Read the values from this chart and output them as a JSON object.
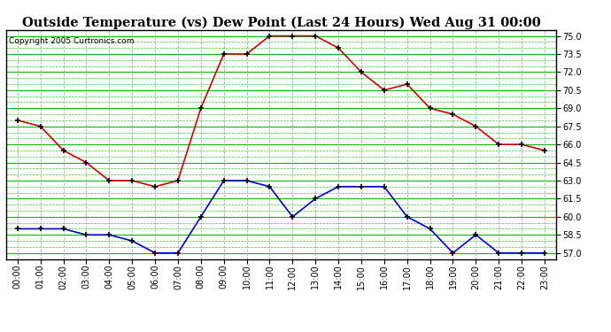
{
  "title": "Outside Temperature (vs) Dew Point (Last 24 Hours) Wed Aug 31 00:00",
  "copyright": "Copyright 2005 Curtronics.com",
  "hours": [
    "00:00",
    "01:00",
    "02:00",
    "03:00",
    "04:00",
    "05:00",
    "06:00",
    "07:00",
    "08:00",
    "09:00",
    "10:00",
    "11:00",
    "12:00",
    "13:00",
    "14:00",
    "15:00",
    "16:00",
    "17:00",
    "18:00",
    "19:00",
    "20:00",
    "21:00",
    "22:00",
    "23:00"
  ],
  "temp": [
    68.0,
    67.5,
    65.5,
    64.5,
    63.0,
    63.0,
    62.5,
    63.0,
    69.0,
    73.5,
    73.5,
    75.0,
    75.0,
    75.0,
    74.0,
    72.0,
    70.5,
    71.0,
    69.0,
    68.5,
    67.5,
    66.0,
    66.0,
    65.5
  ],
  "dew": [
    59.0,
    59.0,
    59.0,
    58.5,
    58.5,
    58.0,
    57.0,
    57.0,
    60.0,
    63.0,
    63.0,
    62.5,
    60.0,
    61.5,
    62.5,
    62.5,
    62.5,
    60.0,
    59.0,
    57.0,
    58.5,
    57.0,
    57.0,
    57.0
  ],
  "temp_color": "#cc0000",
  "dew_color": "#0000cc",
  "bg_color": "#ffffff",
  "plot_bg": "#ffffff",
  "grid_h_color": "#00bb00",
  "grid_v_color": "#aaaaaa",
  "ylim_min": 56.5,
  "ylim_max": 75.5,
  "yticks": [
    57.0,
    58.5,
    60.0,
    61.5,
    63.0,
    64.5,
    66.0,
    67.5,
    69.0,
    70.5,
    72.0,
    73.5,
    75.0
  ],
  "title_fontsize": 10.5,
  "copyright_fontsize": 6.5,
  "tick_fontsize": 7,
  "marker": "+",
  "marker_size": 5,
  "marker_lw": 1.2,
  "line_width": 1.2
}
